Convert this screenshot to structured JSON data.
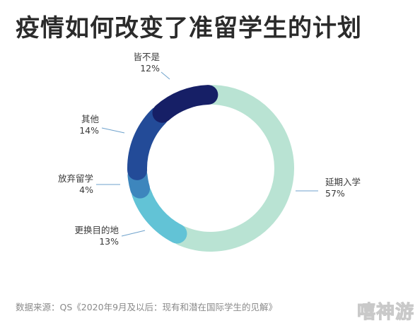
{
  "chart_data": {
    "type": "pie",
    "title": "疫情如何改变了准留学生的计划",
    "source": "数据来源：QS《2020年9月及以后：现有和潜在国际学生的见解》",
    "watermark": "嘻神游",
    "slices": [
      {
        "label": "延期入学",
        "value": 57,
        "pct_label": "57%",
        "color": "#b9e3d3"
      },
      {
        "label": "更换目的地",
        "value": 13,
        "pct_label": "13%",
        "color": "#62c3d6"
      },
      {
        "label": "放弃留学",
        "value": 4,
        "pct_label": "4%",
        "color": "#3d86bd"
      },
      {
        "label": "其他",
        "value": 14,
        "pct_label": "14%",
        "color": "#234b98"
      },
      {
        "label": "皆不是",
        "value": 12,
        "pct_label": "12%",
        "color": "#161f66"
      }
    ],
    "label_color": "#3a3a3a",
    "leader_color": "#6fa2cc"
  }
}
